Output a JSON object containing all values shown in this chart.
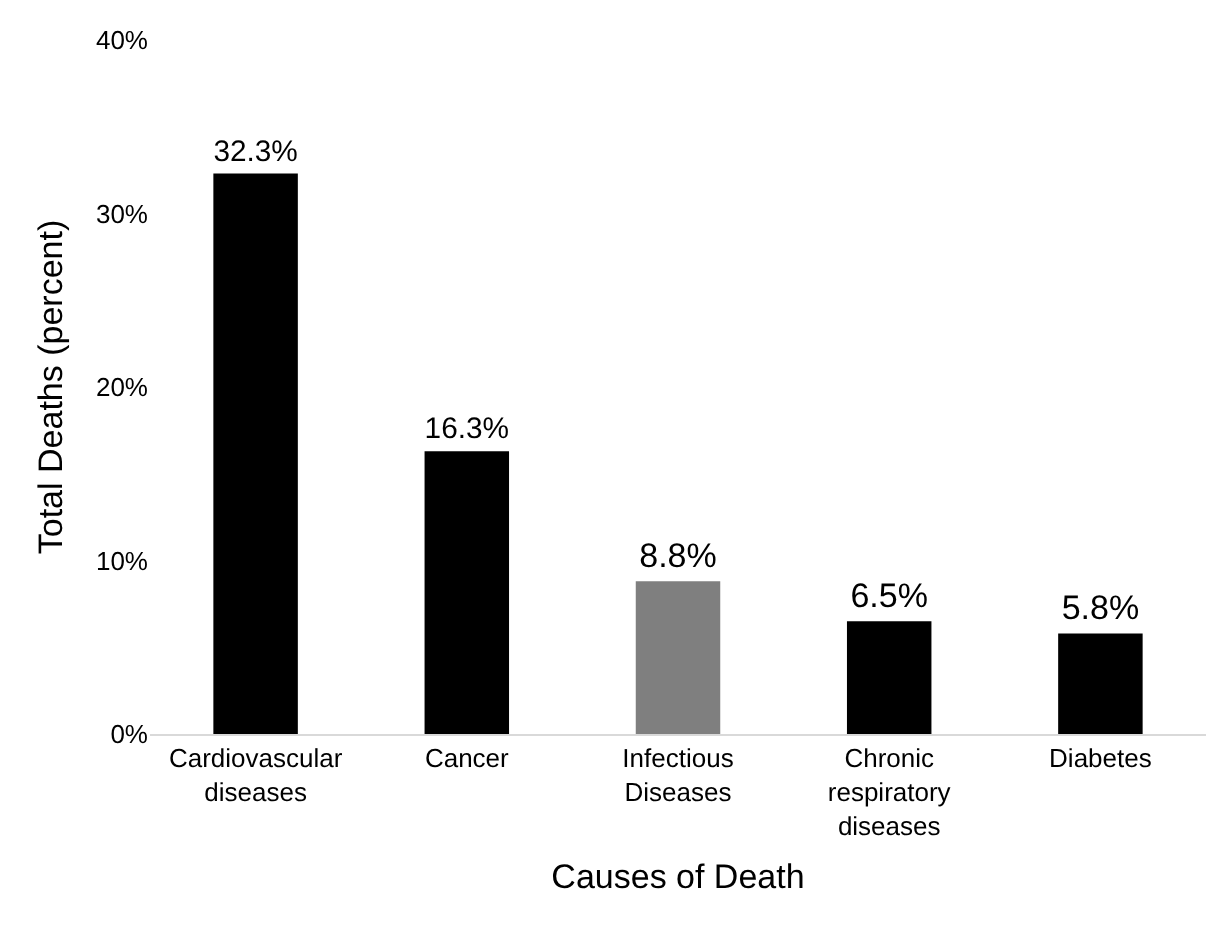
{
  "chart_data": {
    "type": "bar",
    "xlabel": "Causes of Death",
    "ylabel": "Total Deaths (percent)",
    "categories": [
      "Cardiovascular diseases",
      "Cancer",
      "Infectious Diseases",
      "Chronic respiratory diseases",
      "Diabetes"
    ],
    "values": [
      32.3,
      16.3,
      8.8,
      6.5,
      5.8
    ],
    "colors": [
      "#000000",
      "#000000",
      "#7f7f7f",
      "#000000",
      "#000000"
    ],
    "value_labels": [
      "32.3%",
      "16.3%",
      "8.8%",
      "6.5%",
      "5.8%"
    ],
    "ylim": [
      0,
      40
    ],
    "yticks": [
      {
        "value": 0,
        "label": "0%"
      },
      {
        "value": 10,
        "label": "10%"
      },
      {
        "value": 20,
        "label": "20%"
      },
      {
        "value": 30,
        "label": "30%"
      },
      {
        "value": 40,
        "label": "40%"
      }
    ],
    "grid": false,
    "legend": false
  }
}
